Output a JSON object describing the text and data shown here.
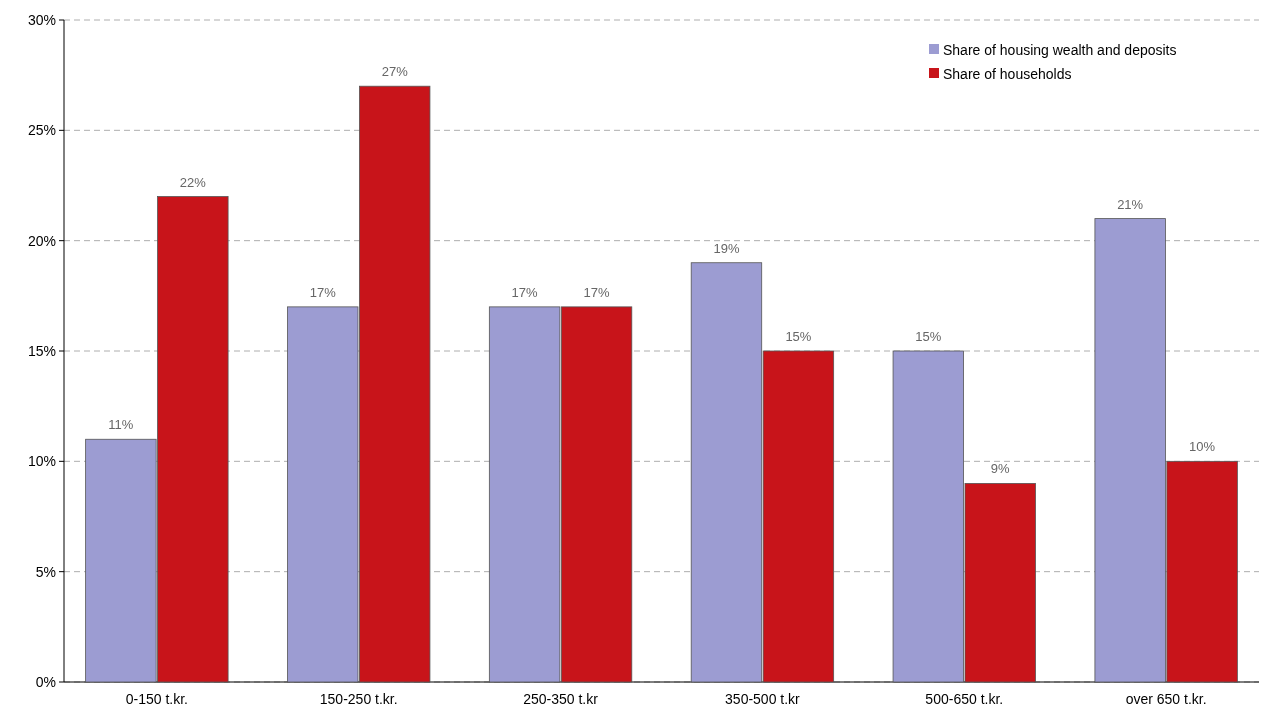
{
  "chart_data": {
    "type": "bar",
    "categories": [
      "0-150 t.kr.",
      "150-250 t.kr.",
      "250-350 t.kr",
      "350-500 t.kr",
      "500-650 t.kr.",
      "over 650 t.kr."
    ],
    "series": [
      {
        "name": "Share of housing wealth and deposits",
        "color": "#9c9cd2",
        "values": [
          11,
          17,
          17,
          19,
          15,
          21
        ],
        "value_labels": [
          "11%",
          "17%",
          "17%",
          "19%",
          "15%",
          "21%"
        ]
      },
      {
        "name": "Share of households",
        "color": "#c8141a",
        "values": [
          22,
          27,
          17,
          15,
          9,
          10
        ],
        "value_labels": [
          "22%",
          "27%",
          "17%",
          "15%",
          "9%",
          "10%"
        ]
      }
    ],
    "ylim": [
      0,
      30
    ],
    "yticks": [
      {
        "value": 0,
        "label": "0%"
      },
      {
        "value": 5,
        "label": "5%"
      },
      {
        "value": 10,
        "label": "10%"
      },
      {
        "value": 15,
        "label": "15%"
      },
      {
        "value": 20,
        "label": "20%"
      },
      {
        "value": 25,
        "label": "25%"
      },
      {
        "value": 30,
        "label": "30%"
      }
    ],
    "grid": "y",
    "legend": "top right"
  }
}
